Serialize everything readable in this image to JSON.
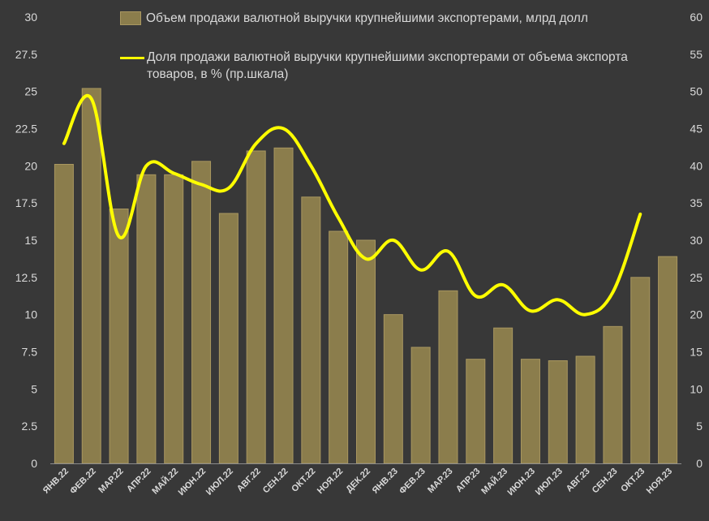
{
  "chart_data": {
    "type": "bar+line",
    "categories": [
      "ЯНВ.22",
      "ФЕВ.22",
      "МАР.22",
      "АПР.22",
      "МАЙ.22",
      "ИЮН.22",
      "ИЮЛ.22",
      "АВГ.22",
      "СЕН.22",
      "ОКТ.22",
      "НОЯ.22",
      "ДЕК.22",
      "ЯНВ.23",
      "ФЕВ.23",
      "МАР.23",
      "АПР.23",
      "МАЙ.23",
      "ИЮН.23",
      "ИЮЛ.23",
      "АВГ.23",
      "СЕН.23",
      "ОКТ.23",
      "НОЯ.23"
    ],
    "series": [
      {
        "name": "Объем продажи  валютной выручки крупнейшими экспортерами, млрд долл",
        "kind": "bar",
        "axis": "left",
        "values": [
          20.1,
          25.2,
          17.1,
          19.4,
          19.4,
          20.3,
          16.8,
          21.0,
          21.2,
          17.9,
          15.6,
          15.0,
          10.0,
          7.8,
          11.6,
          7.0,
          9.1,
          7.0,
          6.9,
          7.2,
          9.2,
          12.5,
          13.9
        ]
      },
      {
        "name_line1": "Доля продажи валютной выручки крупнейшими экспортерами от объема экспорта",
        "name_line2": "товаров, в % (пр.шкала)",
        "kind": "line",
        "axis": "right",
        "values": [
          43,
          49,
          30.5,
          40,
          39,
          37.5,
          37,
          43,
          45,
          40,
          33,
          27.5,
          30,
          26,
          28.5,
          22.5,
          24,
          20.5,
          22,
          20,
          23,
          33.5,
          null
        ]
      }
    ],
    "left_axis": {
      "min": 0,
      "max": 30,
      "ticks": [
        "0",
        "2.5",
        "5",
        "7.5",
        "10",
        "12.5",
        "15",
        "17.5",
        "20",
        "22.5",
        "25",
        "27.5",
        "30"
      ]
    },
    "right_axis": {
      "min": 0,
      "max": 60,
      "ticks": [
        "0",
        "5",
        "10",
        "15",
        "20",
        "25",
        "30",
        "35",
        "40",
        "45",
        "50",
        "55",
        "60"
      ]
    },
    "grid": false,
    "legend_position": "top"
  },
  "colors": {
    "background": "#383838",
    "bar_fill": "#8b7d4c",
    "bar_stroke": "#a99760",
    "line": "#ffff00",
    "text": "#d9d9d9",
    "axis": "#8c8c8c"
  }
}
